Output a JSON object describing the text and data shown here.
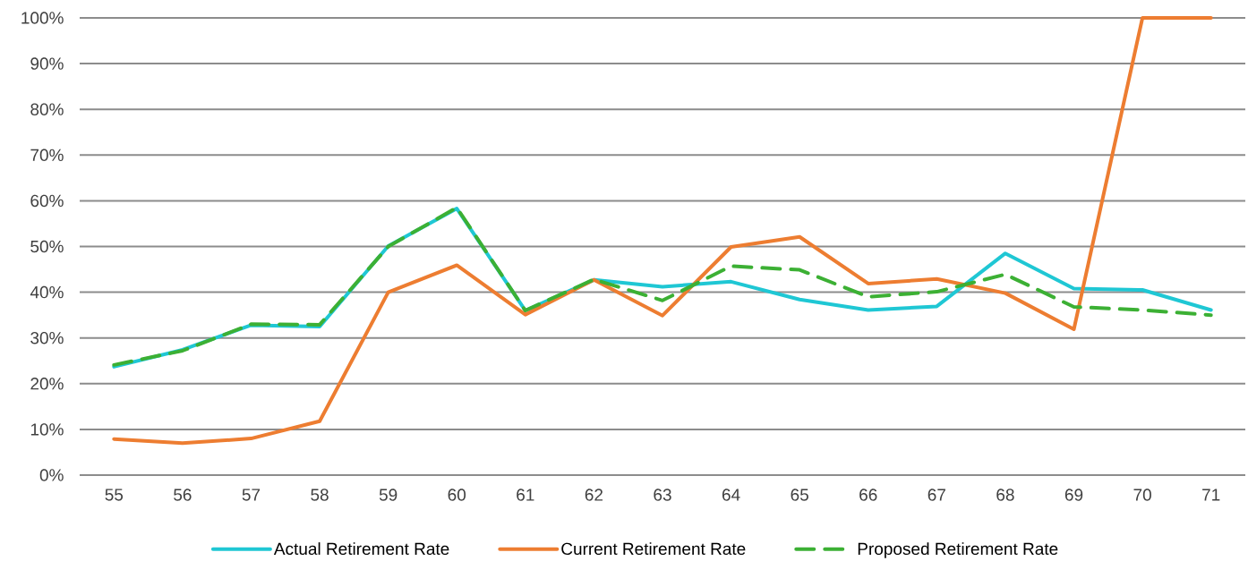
{
  "chart_data": {
    "type": "line",
    "categories": [
      "55",
      "56",
      "57",
      "58",
      "59",
      "60",
      "61",
      "62",
      "63",
      "64",
      "65",
      "66",
      "67",
      "68",
      "69",
      "70",
      "71"
    ],
    "series": [
      {
        "name": "Actual Retirement Rate",
        "color": "#1fc7d4",
        "values": [
          23.7,
          27.4,
          32.8,
          32.5,
          50.1,
          58.3,
          36,
          42.7,
          41.2,
          42.3,
          38.4,
          36.1,
          36.9,
          48.5,
          40.8,
          40.5,
          36.1
        ]
      },
      {
        "name": "Current Retirement Rate",
        "color": "#ed7d31",
        "values": [
          7.9,
          7,
          8,
          11.8,
          40,
          45.9,
          35.1,
          42.7,
          34.9,
          49.9,
          52.1,
          41.9,
          42.9,
          39.8,
          31.9,
          100,
          100
        ]
      },
      {
        "name": "Proposed Retirement Rate",
        "color": "#3cb034",
        "line_style": "dashed",
        "values": [
          24.1,
          27.2,
          33,
          32.9,
          50,
          58.5,
          36,
          42.8,
          38.2,
          45.7,
          44.9,
          39,
          40.1,
          43.9,
          36.8,
          36.1,
          35
        ]
      }
    ],
    "ylim": [
      0,
      100
    ],
    "yticks": [
      {
        "value": 0,
        "label": "0%"
      },
      {
        "value": 10,
        "label": "10%"
      },
      {
        "value": 20,
        "label": "20%"
      },
      {
        "value": 30,
        "label": "30%"
      },
      {
        "value": 40,
        "label": "40%"
      },
      {
        "value": 50,
        "label": "50%"
      },
      {
        "value": 60,
        "label": "60%"
      },
      {
        "value": 70,
        "label": "70%"
      },
      {
        "value": 80,
        "label": "80%"
      },
      {
        "value": 90,
        "label": "90%"
      },
      {
        "value": 100,
        "label": "100%"
      }
    ],
    "grid": "y",
    "legend": "bottom",
    "marker": "none",
    "line_style": "solid"
  }
}
